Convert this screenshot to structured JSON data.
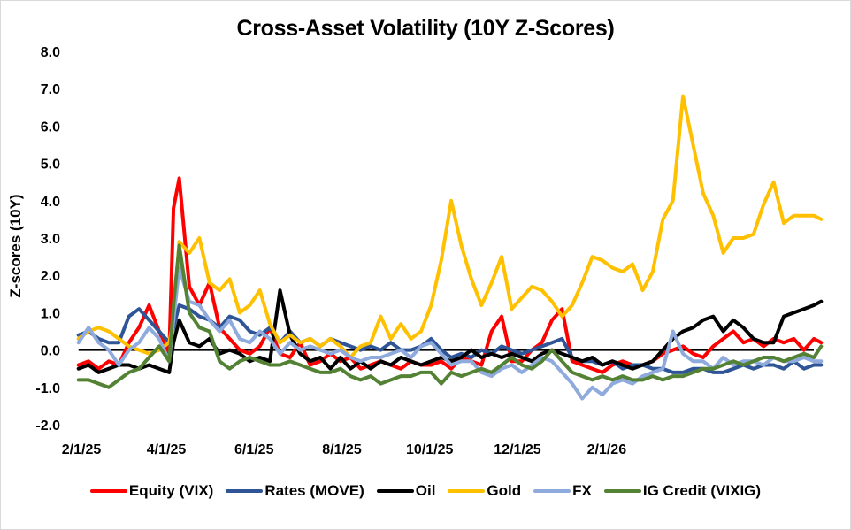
{
  "chart_data": {
    "type": "line",
    "title": "Cross-Asset Volatility (10Y Z-Scores)",
    "xlabel": "",
    "ylabel": "Z-scores (10Y)",
    "ylim": [
      -2.0,
      8.0
    ],
    "yticks": [
      "8.0",
      "7.0",
      "6.0",
      "5.0",
      "4.0",
      "3.0",
      "2.0",
      "1.0",
      "0.0",
      "-1.0",
      "-2.0"
    ],
    "ytick_values": [
      8,
      7,
      6,
      5,
      4,
      3,
      2,
      1,
      0,
      -1,
      -2
    ],
    "xaxis_unit": "days since 2/1/25",
    "xlim_days": [
      -2,
      514
    ],
    "xticks": [
      {
        "label": "2/1/25",
        "day": 0
      },
      {
        "label": "4/1/25",
        "day": 59
      },
      {
        "label": "6/1/25",
        "day": 120
      },
      {
        "label": "8/1/25",
        "day": 181
      },
      {
        "label": "10/1/25",
        "day": 242
      },
      {
        "label": "12/1/25",
        "day": 303
      },
      {
        "label": "2/1/26",
        "day": 365
      }
    ],
    "zero_line": true,
    "grid": false,
    "legend_position": "bottom",
    "sample_days": [
      -2,
      5,
      12,
      19,
      26,
      33,
      40,
      47,
      54,
      61,
      64,
      68,
      75,
      82,
      89,
      96,
      103,
      110,
      117,
      124,
      131,
      138,
      145,
      152,
      159,
      166,
      173,
      180,
      187,
      194,
      201,
      208,
      215,
      222,
      229,
      236,
      243,
      250,
      257,
      264,
      271,
      278,
      285,
      292,
      299,
      306,
      313,
      320,
      327,
      334,
      341,
      348,
      355,
      362,
      369,
      376,
      383,
      390,
      397,
      404,
      411,
      418,
      425,
      432,
      439,
      446,
      453,
      460,
      467,
      474,
      481,
      488,
      495,
      502,
      509,
      514
    ],
    "series": [
      {
        "name": "Equity (VIX)",
        "color": "#ff0000",
        "values": [
          -0.4,
          -0.3,
          -0.5,
          -0.3,
          -0.4,
          0.2,
          0.6,
          1.2,
          0.5,
          -0.1,
          3.8,
          4.6,
          1.7,
          1.2,
          1.8,
          0.6,
          0.3,
          0.0,
          -0.1,
          0.1,
          0.6,
          -0.1,
          -0.2,
          0.2,
          -0.4,
          -0.3,
          -0.1,
          -0.3,
          -0.2,
          -0.5,
          -0.4,
          -0.3,
          -0.4,
          -0.5,
          -0.3,
          -0.4,
          -0.4,
          -0.3,
          -0.5,
          -0.2,
          -0.3,
          -0.4,
          0.5,
          0.9,
          -0.3,
          -0.3,
          0.0,
          0.2,
          0.8,
          1.1,
          -0.3,
          -0.4,
          -0.5,
          -0.6,
          -0.4,
          -0.3,
          -0.4,
          -0.4,
          -0.3,
          -0.1,
          0.0,
          0.1,
          -0.1,
          -0.2,
          0.1,
          0.3,
          0.5,
          0.2,
          0.3,
          0.1,
          0.3,
          0.2,
          0.3,
          0.0,
          0.3,
          0.2
        ]
      },
      {
        "name": "Rates (MOVE)",
        "color": "#2f5597",
        "values": [
          0.4,
          0.5,
          0.3,
          0.2,
          0.2,
          0.9,
          1.1,
          0.8,
          0.5,
          0.2,
          0.6,
          1.2,
          1.1,
          0.9,
          0.8,
          0.6,
          0.9,
          0.8,
          0.5,
          0.4,
          0.6,
          0.2,
          0.5,
          0.2,
          0.3,
          0.1,
          0.3,
          0.2,
          0.1,
          0.0,
          0.1,
          0.0,
          0.2,
          0.0,
          0.0,
          0.1,
          0.3,
          0.0,
          -0.2,
          -0.1,
          -0.2,
          0.0,
          -0.1,
          0.1,
          0.0,
          -0.1,
          0.0,
          0.1,
          0.2,
          0.3,
          -0.2,
          -0.3,
          -0.3,
          -0.4,
          -0.3,
          -0.5,
          -0.4,
          -0.4,
          -0.5,
          -0.5,
          -0.6,
          -0.6,
          -0.5,
          -0.5,
          -0.6,
          -0.6,
          -0.5,
          -0.4,
          -0.5,
          -0.4,
          -0.4,
          -0.5,
          -0.3,
          -0.5,
          -0.4,
          -0.4
        ]
      },
      {
        "name": "Oil",
        "color": "#000000",
        "values": [
          -0.5,
          -0.4,
          -0.6,
          -0.5,
          -0.4,
          -0.4,
          -0.5,
          -0.4,
          -0.5,
          -0.6,
          0.2,
          0.8,
          0.2,
          0.1,
          0.3,
          -0.1,
          0.0,
          -0.1,
          -0.3,
          -0.2,
          -0.3,
          1.6,
          0.4,
          -0.1,
          -0.3,
          -0.2,
          -0.5,
          -0.2,
          -0.5,
          -0.3,
          -0.5,
          -0.3,
          -0.4,
          -0.2,
          -0.3,
          -0.4,
          -0.3,
          -0.2,
          -0.3,
          -0.2,
          0.0,
          -0.2,
          -0.1,
          -0.2,
          -0.1,
          -0.2,
          -0.3,
          -0.1,
          0.0,
          -0.1,
          -0.2,
          -0.3,
          -0.2,
          -0.4,
          -0.3,
          -0.4,
          -0.5,
          -0.4,
          -0.3,
          0.0,
          0.3,
          0.5,
          0.6,
          0.8,
          0.9,
          0.5,
          0.8,
          0.6,
          0.3,
          0.2,
          0.2,
          0.9,
          1.0,
          1.1,
          1.2,
          1.3
        ]
      },
      {
        "name": "Gold",
        "color": "#ffc000",
        "values": [
          0.3,
          0.5,
          0.6,
          0.5,
          0.3,
          0.1,
          0.0,
          -0.1,
          0.0,
          0.2,
          0.8,
          2.9,
          2.6,
          3.0,
          1.8,
          1.6,
          1.9,
          1.0,
          1.2,
          1.6,
          0.7,
          0.2,
          0.4,
          0.2,
          0.3,
          0.1,
          0.3,
          0.1,
          -0.2,
          0.1,
          0.2,
          0.9,
          0.3,
          0.7,
          0.3,
          0.5,
          1.2,
          2.4,
          4.0,
          2.8,
          1.9,
          1.2,
          1.8,
          2.5,
          1.1,
          1.4,
          1.7,
          1.6,
          1.3,
          0.9,
          1.2,
          1.8,
          2.5,
          2.4,
          2.2,
          2.1,
          2.3,
          1.6,
          2.1,
          3.5,
          4.0,
          6.8,
          5.5,
          4.2,
          3.6,
          2.6,
          3.0,
          3.0,
          3.1,
          3.9,
          4.5,
          3.4,
          3.6,
          3.6,
          3.6,
          3.5
        ]
      },
      {
        "name": "FX",
        "color": "#8faadc",
        "values": [
          0.2,
          0.6,
          0.2,
          0.0,
          -0.4,
          0.0,
          0.2,
          0.6,
          0.3,
          -0.3,
          0.8,
          2.2,
          1.3,
          1.2,
          0.8,
          0.5,
          0.8,
          0.3,
          0.2,
          0.5,
          0.3,
          -0.1,
          0.2,
          0.0,
          0.1,
          0.0,
          -0.1,
          0.0,
          -0.2,
          -0.3,
          -0.2,
          -0.2,
          -0.1,
          0.0,
          -0.2,
          0.1,
          0.2,
          -0.1,
          -0.4,
          -0.3,
          -0.3,
          -0.6,
          -0.7,
          -0.5,
          -0.4,
          -0.6,
          -0.4,
          -0.2,
          -0.3,
          -0.6,
          -0.9,
          -1.3,
          -1.0,
          -1.2,
          -0.9,
          -0.8,
          -0.9,
          -0.7,
          -0.6,
          -0.5,
          0.5,
          -0.1,
          -0.3,
          -0.3,
          -0.5,
          -0.2,
          -0.4,
          -0.3,
          -0.3,
          -0.4,
          -0.2,
          -0.3,
          -0.3,
          -0.2,
          -0.3,
          -0.3
        ]
      },
      {
        "name": "IG Credit (VIXIG)",
        "color": "#548235",
        "values": [
          -0.8,
          -0.8,
          -0.9,
          -1.0,
          -0.8,
          -0.6,
          -0.5,
          -0.2,
          0.1,
          -0.3,
          1.2,
          2.8,
          1.0,
          0.6,
          0.5,
          -0.3,
          -0.5,
          -0.3,
          -0.2,
          -0.3,
          -0.4,
          -0.4,
          -0.3,
          -0.4,
          -0.5,
          -0.6,
          -0.6,
          -0.5,
          -0.7,
          -0.8,
          -0.7,
          -0.9,
          -0.8,
          -0.7,
          -0.7,
          -0.6,
          -0.6,
          -0.9,
          -0.6,
          -0.7,
          -0.6,
          -0.5,
          -0.6,
          -0.4,
          -0.2,
          -0.4,
          -0.5,
          -0.3,
          0.0,
          -0.3,
          -0.6,
          -0.7,
          -0.8,
          -0.7,
          -0.8,
          -0.7,
          -0.8,
          -0.8,
          -0.7,
          -0.8,
          -0.7,
          -0.7,
          -0.6,
          -0.5,
          -0.5,
          -0.4,
          -0.3,
          -0.4,
          -0.3,
          -0.2,
          -0.2,
          -0.3,
          -0.2,
          -0.1,
          -0.2,
          0.1
        ]
      }
    ]
  }
}
